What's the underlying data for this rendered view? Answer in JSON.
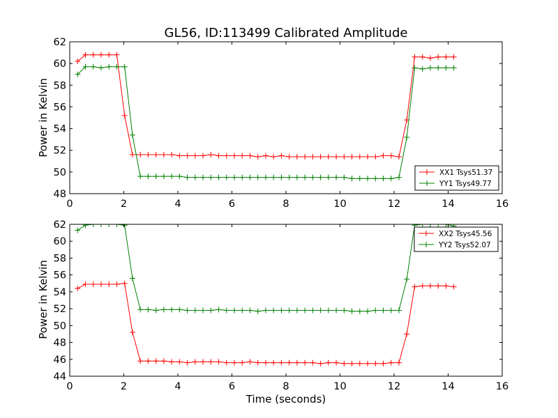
{
  "chart_data": [
    {
      "type": "line",
      "title": "GL56, ID:113499 Calibrated Amplitude",
      "xlabel": "",
      "ylabel": "Power in Kelvin",
      "xlim": [
        0,
        16
      ],
      "ylim": [
        48,
        62
      ],
      "xticks": [
        0,
        2,
        4,
        6,
        8,
        10,
        12,
        14,
        16
      ],
      "yticks": [
        48,
        50,
        52,
        54,
        56,
        58,
        60,
        62
      ],
      "x": [
        0.29,
        0.58,
        0.87,
        1.16,
        1.45,
        1.74,
        2.03,
        2.32,
        2.61,
        2.9,
        3.19,
        3.48,
        3.77,
        4.06,
        4.35,
        4.64,
        4.93,
        5.22,
        5.51,
        5.8,
        6.09,
        6.38,
        6.67,
        6.96,
        7.25,
        7.54,
        7.83,
        8.12,
        8.41,
        8.7,
        8.99,
        9.28,
        9.57,
        9.86,
        10.15,
        10.44,
        10.73,
        11.02,
        11.31,
        11.6,
        11.89,
        12.18,
        12.47,
        12.76,
        13.05,
        13.34,
        13.63,
        13.92,
        14.21
      ],
      "legend_position": "lower-right",
      "series": [
        {
          "name": "XX1 Tsys51.37",
          "color": "#ff0000",
          "values": [
            60.2,
            60.8,
            60.8,
            60.8,
            60.8,
            60.8,
            55.2,
            51.6,
            51.6,
            51.6,
            51.6,
            51.6,
            51.6,
            51.5,
            51.5,
            51.5,
            51.5,
            51.6,
            51.5,
            51.5,
            51.5,
            51.5,
            51.5,
            51.4,
            51.5,
            51.4,
            51.5,
            51.4,
            51.4,
            51.4,
            51.4,
            51.4,
            51.4,
            51.4,
            51.4,
            51.4,
            51.4,
            51.4,
            51.4,
            51.5,
            51.5,
            51.4,
            54.8,
            60.6,
            60.6,
            60.5,
            60.6,
            60.6,
            60.6
          ]
        },
        {
          "name": "YY1 Tsys49.77",
          "color": "#008000",
          "values": [
            59.0,
            59.7,
            59.7,
            59.6,
            59.7,
            59.7,
            59.7,
            53.4,
            49.6,
            49.6,
            49.6,
            49.6,
            49.6,
            49.6,
            49.5,
            49.5,
            49.5,
            49.5,
            49.5,
            49.5,
            49.5,
            49.5,
            49.5,
            49.5,
            49.5,
            49.5,
            49.5,
            49.5,
            49.5,
            49.5,
            49.5,
            49.5,
            49.5,
            49.5,
            49.5,
            49.4,
            49.4,
            49.4,
            49.4,
            49.4,
            49.4,
            49.5,
            53.2,
            59.6,
            59.5,
            59.6,
            59.6,
            59.6,
            59.6
          ]
        }
      ]
    },
    {
      "type": "line",
      "title": "",
      "xlabel": "Time (seconds)",
      "ylabel": "Power in Kelvin",
      "xlim": [
        0,
        16
      ],
      "ylim": [
        44,
        62
      ],
      "xticks": [
        0,
        2,
        4,
        6,
        8,
        10,
        12,
        14,
        16
      ],
      "yticks": [
        44,
        46,
        48,
        50,
        52,
        54,
        56,
        58,
        60,
        62
      ],
      "x": [
        0.29,
        0.58,
        0.87,
        1.16,
        1.45,
        1.74,
        2.03,
        2.32,
        2.61,
        2.9,
        3.19,
        3.48,
        3.77,
        4.06,
        4.35,
        4.64,
        4.93,
        5.22,
        5.51,
        5.8,
        6.09,
        6.38,
        6.67,
        6.96,
        7.25,
        7.54,
        7.83,
        8.12,
        8.41,
        8.7,
        8.99,
        9.28,
        9.57,
        9.86,
        10.15,
        10.44,
        10.73,
        11.02,
        11.31,
        11.6,
        11.89,
        12.18,
        12.47,
        12.76,
        13.05,
        13.34,
        13.63,
        13.92,
        14.21
      ],
      "legend_position": "upper-right",
      "series": [
        {
          "name": "XX2 Tsys45.56",
          "color": "#ff0000",
          "values": [
            54.4,
            54.9,
            54.9,
            54.9,
            54.9,
            54.9,
            55.0,
            49.2,
            45.8,
            45.8,
            45.8,
            45.8,
            45.7,
            45.7,
            45.6,
            45.7,
            45.7,
            45.7,
            45.7,
            45.6,
            45.6,
            45.6,
            45.7,
            45.6,
            45.6,
            45.6,
            45.6,
            45.6,
            45.6,
            45.6,
            45.6,
            45.5,
            45.6,
            45.6,
            45.5,
            45.5,
            45.5,
            45.5,
            45.5,
            45.5,
            45.6,
            45.6,
            49.0,
            54.6,
            54.7,
            54.7,
            54.7,
            54.7,
            54.6
          ]
        },
        {
          "name": "YY2 Tsys52.07",
          "color": "#008000",
          "values": [
            61.3,
            61.9,
            62.0,
            62.0,
            62.0,
            62.0,
            61.9,
            55.6,
            51.9,
            51.9,
            51.8,
            51.9,
            51.9,
            51.9,
            51.8,
            51.8,
            51.8,
            51.8,
            51.9,
            51.8,
            51.8,
            51.8,
            51.8,
            51.7,
            51.8,
            51.8,
            51.8,
            51.8,
            51.8,
            51.8,
            51.8,
            51.8,
            51.8,
            51.8,
            51.8,
            51.7,
            51.7,
            51.7,
            51.8,
            51.8,
            51.8,
            51.8,
            55.5,
            61.9,
            62.0,
            62.0,
            62.0,
            62.0,
            61.8
          ]
        }
      ]
    }
  ]
}
